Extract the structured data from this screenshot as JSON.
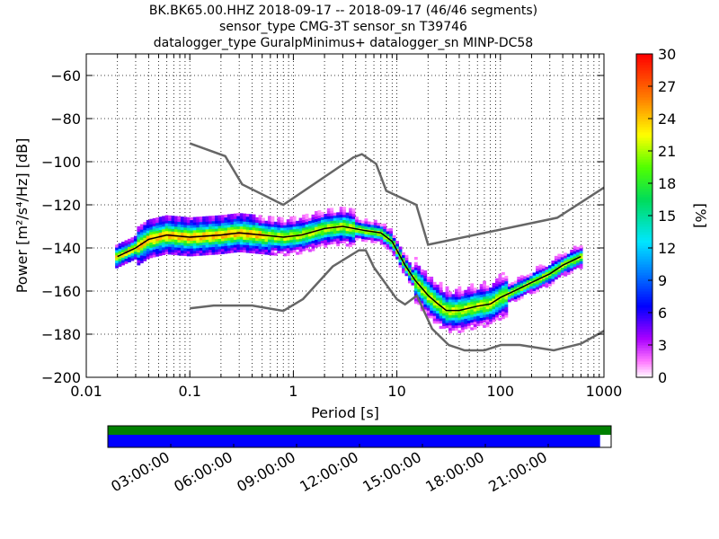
{
  "chart_data": {
    "type": "heatmap",
    "title_lines": [
      "BK.BK65.00.HHZ   2018-09-17 -- 2018-09-17  (46/46 segments)",
      "sensor_type CMG-3T sensor_sn T39746",
      "datalogger_type GuralpMinimus+ datalogger_sn MINP-DC58"
    ],
    "xlabel": "Period [s]",
    "ylabel": "Power [m²/s⁴/Hz] [dB]",
    "xscale": "log",
    "xlim": [
      0.01,
      1000
    ],
    "ylim": [
      -200,
      -50
    ],
    "xticks": [
      {
        "value": 0.01,
        "label": "0.01"
      },
      {
        "value": 0.1,
        "label": "0.1"
      },
      {
        "value": 1,
        "label": "1"
      },
      {
        "value": 10,
        "label": "10"
      },
      {
        "value": 100,
        "label": "100"
      },
      {
        "value": 1000,
        "label": "1000"
      }
    ],
    "yticks": [
      -200,
      -180,
      -160,
      -140,
      -120,
      -100,
      -80,
      -60
    ],
    "grid": true,
    "colorbar": {
      "label": "[%]",
      "min": 0,
      "max": 30,
      "ticks": [
        0,
        3,
        6,
        9,
        12,
        15,
        18,
        21,
        24,
        27,
        30
      ]
    },
    "noise_models": [
      {
        "period": [
          0.1,
          0.22,
          0.32,
          0.8,
          3.8,
          4.6,
          6.3,
          7.9,
          15.4,
          20,
          354,
          1000
        ],
        "power": [
          -91.5,
          -97.4,
          -110.5,
          -120,
          -98,
          -96.5,
          -101,
          -113.5,
          -120,
          -138.5,
          -126,
          -112
        ]
      },
      {
        "period": [
          0.1,
          0.17,
          0.4,
          0.8,
          1.24,
          2.4,
          4.3,
          5,
          6,
          10,
          12,
          15.6,
          21.9,
          31.6,
          45,
          70,
          101,
          154,
          328,
          600,
          1000
        ],
        "power": [
          -168,
          -166.7,
          -166.7,
          -169.2,
          -163.7,
          -148.6,
          -141.1,
          -141.1,
          -149,
          -163.8,
          -166.2,
          -162.1,
          -177.5,
          -185,
          -187.5,
          -187.5,
          -185,
          -185,
          -187.5,
          -184.4,
          -178.5
        ]
      }
    ],
    "mode_curve": {
      "period": [
        0.02,
        0.03,
        0.04,
        0.06,
        0.1,
        0.2,
        0.3,
        0.5,
        0.8,
        1.2,
        2,
        3,
        5,
        7,
        9,
        12,
        15,
        20,
        25,
        30,
        40,
        60,
        80,
        100,
        150,
        200,
        300,
        400,
        600
      ],
      "power": [
        -144,
        -140,
        -136,
        -134,
        -135,
        -134,
        -133,
        -134,
        -135,
        -134,
        -131,
        -130,
        -132,
        -133,
        -137,
        -148,
        -155,
        -162,
        -166,
        -169,
        -169,
        -167,
        -166,
        -163,
        -159,
        -156,
        -152,
        -148,
        -144
      ]
    },
    "segment_time_ticks": [
      "03:00:00",
      "06:00:00",
      "09:00:00",
      "12:00:00",
      "15:00:00",
      "18:00:00",
      "21:00:00"
    ],
    "data_coverage_fraction": 0.978
  }
}
